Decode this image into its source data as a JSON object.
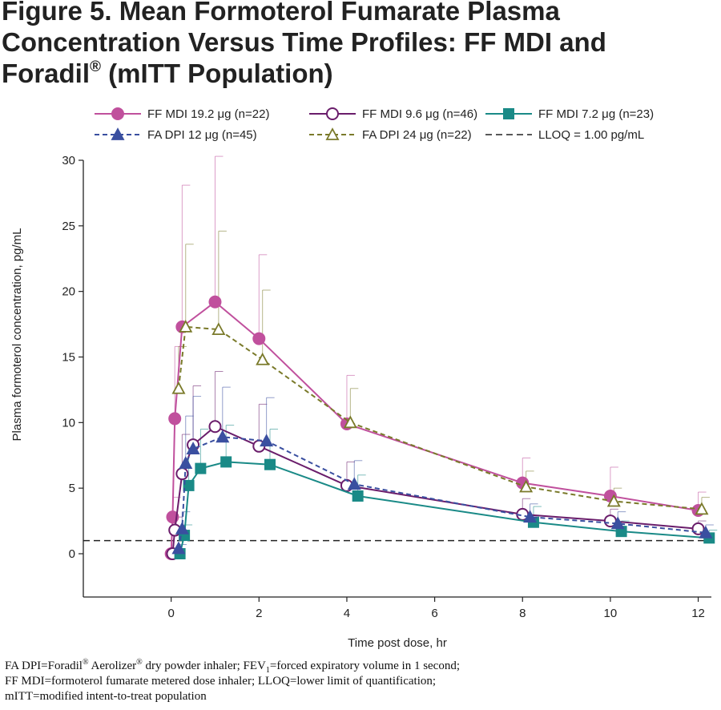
{
  "title": {
    "line1": "Figure 5. Mean Formoterol Fumarate Plasma",
    "line2": "Concentration Versus Time Profiles: FF MDI and",
    "line3_pre": "Foradil",
    "line3_sup": "®",
    "line3_post": " (mITT Population)"
  },
  "footnote": {
    "l1a": "FA DPI=Foradil",
    "l1b": "®",
    "l1c": " Aerolizer",
    "l1d": "®",
    "l1e": " dry powder inhaler; FEV",
    "l1f": "1",
    "l1g": "=forced expiratory volume in 1 second;",
    "l2": "FF MDI=formoterol fumarate metered dose inhaler; LLOQ=lower limit of quantification;",
    "l3": "mITT=modified intent-to-treat population"
  },
  "chart_data": {
    "type": "line",
    "xlabel": "Time post dose, hr",
    "ylabel": "Plasma formoterol concentration, pg/mL",
    "xlim": [
      -2,
      12.3
    ],
    "ylim": [
      -3.3,
      30
    ],
    "xticks": [
      0,
      2,
      4,
      6,
      8,
      10,
      12
    ],
    "yticks": [
      0,
      5,
      10,
      15,
      20,
      25,
      30
    ],
    "legend_position": "top",
    "lloq": {
      "label": "LLOQ = 1.00 pg/mL",
      "value": 1.0,
      "color": "#222222"
    },
    "series": [
      {
        "name": "FF MDI 19.2 μg (n=22)",
        "color": "#c0509d",
        "marker": "circle-filled",
        "dash": "solid",
        "x": [
          0,
          0.033,
          0.083,
          0.25,
          1,
          2,
          4,
          8,
          10,
          12
        ],
        "y": [
          0,
          2.8,
          10.3,
          17.3,
          19.2,
          16.4,
          9.9,
          5.4,
          4.4,
          3.3
        ],
        "err": [
          0,
          1.5,
          5.5,
          10.8,
          11.1,
          6.4,
          3.7,
          1.9,
          2.2,
          1.4
        ]
      },
      {
        "name": "FF MDI 9.6 μg (n=46)",
        "color": "#6a1d6b",
        "marker": "circle-open",
        "dash": "solid",
        "x": [
          0.033,
          0.083,
          0.25,
          0.5,
          1,
          2,
          4,
          8,
          10,
          12
        ],
        "y": [
          0,
          1.8,
          6.1,
          8.3,
          9.7,
          8.2,
          5.2,
          3.0,
          2.5,
          1.9
        ],
        "err": [
          0,
          1.0,
          3.0,
          4.5,
          4.2,
          3.2,
          1.8,
          1.2,
          0.9,
          0.6
        ]
      },
      {
        "name": "FF MDI 7.2 μg (n=23)",
        "color": "#1a8a87",
        "marker": "square-filled",
        "dash": "solid",
        "x": [
          0.2,
          0.3,
          0.4,
          0.67,
          1.25,
          2.25,
          4.25,
          8.25,
          10.25,
          12.25
        ],
        "y": [
          0,
          1.4,
          5.2,
          6.5,
          7.0,
          6.8,
          4.4,
          2.4,
          1.7,
          1.2
        ],
        "err": [
          0,
          0.8,
          3.0,
          3.0,
          2.8,
          2.7,
          1.6,
          1.2,
          0.8,
          0.6
        ]
      },
      {
        "name": "FA DPI 12 μg (n=45)",
        "color": "#3a4fa0",
        "marker": "triangle-filled",
        "dash": "dashed",
        "x": [
          0.17,
          0.25,
          0.33,
          0.5,
          1.17,
          2.17,
          4.17,
          8.17,
          10.17,
          12.17
        ],
        "y": [
          0.4,
          1.9,
          6.9,
          8.0,
          8.9,
          8.6,
          5.3,
          2.8,
          2.3,
          1.6
        ],
        "err": [
          0.3,
          1.3,
          3.6,
          4.0,
          3.8,
          3.3,
          1.8,
          1.0,
          0.9,
          0.6
        ]
      },
      {
        "name": "FA DPI 24 μg (n=22)",
        "color": "#7a7a2a",
        "marker": "triangle-open",
        "dash": "dashed",
        "x": [
          0.17,
          0.33,
          1.08,
          2.08,
          4.08,
          8.08,
          10.08,
          12.08
        ],
        "y": [
          12.6,
          17.3,
          17.1,
          14.8,
          10.0,
          5.1,
          4.0,
          3.4
        ],
        "err": [
          3.2,
          6.3,
          7.5,
          5.3,
          2.6,
          1.2,
          1.0,
          0.9
        ]
      }
    ]
  }
}
